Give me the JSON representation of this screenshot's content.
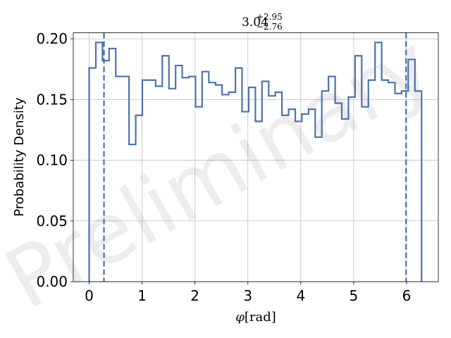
{
  "chart_data": {
    "type": "histogram",
    "title": {
      "main": "3.04",
      "sup": "+2.95",
      "sub": "−2.76"
    },
    "xlabel": {
      "symbol": "φ",
      "unit": "[rad]"
    },
    "ylabel": "Probability Density",
    "xlim": [
      -0.3,
      6.6
    ],
    "ylim": [
      0,
      0.205
    ],
    "x_ticks": [
      0,
      1,
      2,
      3,
      4,
      5,
      6
    ],
    "x_tick_labels": [
      "0",
      "1",
      "2",
      "3",
      "4",
      "5",
      "6"
    ],
    "y_ticks": [
      0,
      0.05,
      0.1,
      0.15,
      0.2
    ],
    "y_tick_labels": [
      "0.00",
      "0.05",
      "0.10",
      "0.15",
      "0.20"
    ],
    "grid": true,
    "bin_edges": [
      0,
      0.126,
      0.251,
      0.377,
      0.503,
      0.628,
      0.754,
      0.88,
      1.005,
      1.131,
      1.257,
      1.382,
      1.508,
      1.634,
      1.759,
      1.885,
      2.011,
      2.136,
      2.262,
      2.388,
      2.513,
      2.639,
      2.765,
      2.89,
      3.016,
      3.142,
      3.267,
      3.393,
      3.519,
      3.644,
      3.77,
      3.896,
      4.021,
      4.147,
      4.273,
      4.398,
      4.524,
      4.65,
      4.775,
      4.901,
      5.027,
      5.152,
      5.278,
      5.404,
      5.529,
      5.655,
      5.781,
      5.906,
      6.032,
      6.158,
      6.283
    ],
    "values": [
      0.176,
      0.197,
      0.182,
      0.192,
      0.169,
      0.169,
      0.113,
      0.137,
      0.166,
      0.166,
      0.161,
      0.186,
      0.159,
      0.178,
      0.168,
      0.169,
      0.144,
      0.173,
      0.164,
      0.162,
      0.154,
      0.156,
      0.176,
      0.14,
      0.16,
      0.132,
      0.165,
      0.153,
      0.156,
      0.137,
      0.142,
      0.132,
      0.138,
      0.142,
      0.119,
      0.157,
      0.169,
      0.147,
      0.134,
      0.152,
      0.186,
      0.144,
      0.166,
      0.197,
      0.166,
      0.164,
      0.155,
      0.157,
      0.183,
      0.157
    ],
    "credible_interval": [
      0.28,
      5.99
    ],
    "watermark": "Preliminary",
    "colors": {
      "line": "#4c72b0",
      "grid": "#b0b0b0",
      "axis": "#000000"
    }
  }
}
